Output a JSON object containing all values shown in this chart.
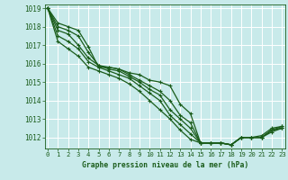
{
  "title": "Graphe pression niveau de la mer (hPa)",
  "bg_color": "#c8eaea",
  "grid_color": "#ffffff",
  "line_color": "#1a5c1a",
  "xlim": [
    -0.3,
    23.3
  ],
  "ylim": [
    1011.4,
    1019.2
  ],
  "yticks": [
    1012,
    1013,
    1014,
    1015,
    1016,
    1017,
    1018,
    1019
  ],
  "xticks": [
    0,
    1,
    2,
    3,
    4,
    5,
    6,
    7,
    8,
    9,
    10,
    11,
    12,
    13,
    14,
    15,
    16,
    17,
    18,
    19,
    20,
    21,
    22,
    23
  ],
  "series": [
    [
      1019.0,
      1018.2,
      1018.0,
      1017.8,
      1016.9,
      1015.8,
      1015.8,
      1015.7,
      1015.5,
      1015.4,
      1015.1,
      1015.0,
      1014.8,
      1013.8,
      1013.3,
      1011.7,
      1011.7,
      1011.7,
      1011.6,
      1012.0,
      1012.0,
      1012.1,
      1012.5,
      1012.6
    ],
    [
      1019.0,
      1018.0,
      1017.8,
      1017.5,
      1016.6,
      1015.9,
      1015.8,
      1015.7,
      1015.4,
      1015.1,
      1014.8,
      1014.5,
      1014.0,
      1013.2,
      1012.8,
      1011.7,
      1011.7,
      1011.7,
      1011.6,
      1012.0,
      1012.0,
      1012.0,
      1012.4,
      1012.6
    ],
    [
      1019.0,
      1017.8,
      1017.6,
      1017.0,
      1016.3,
      1015.9,
      1015.7,
      1015.6,
      1015.3,
      1015.0,
      1014.6,
      1014.3,
      1013.5,
      1013.0,
      1012.5,
      1011.7,
      1011.7,
      1011.7,
      1011.6,
      1012.0,
      1012.0,
      1012.0,
      1012.4,
      1012.5
    ],
    [
      1019.0,
      1017.5,
      1017.2,
      1016.8,
      1016.1,
      1015.8,
      1015.6,
      1015.4,
      1015.2,
      1014.8,
      1014.4,
      1014.0,
      1013.2,
      1012.7,
      1012.2,
      1011.7,
      1011.7,
      1011.7,
      1011.6,
      1012.0,
      1012.0,
      1012.0,
      1012.4,
      1012.5
    ],
    [
      1019.0,
      1017.2,
      1016.8,
      1016.4,
      1015.8,
      1015.6,
      1015.4,
      1015.2,
      1014.9,
      1014.5,
      1014.0,
      1013.5,
      1013.0,
      1012.4,
      1011.9,
      1011.7,
      1011.7,
      1011.7,
      1011.6,
      1012.0,
      1012.0,
      1012.0,
      1012.3,
      1012.5
    ]
  ]
}
